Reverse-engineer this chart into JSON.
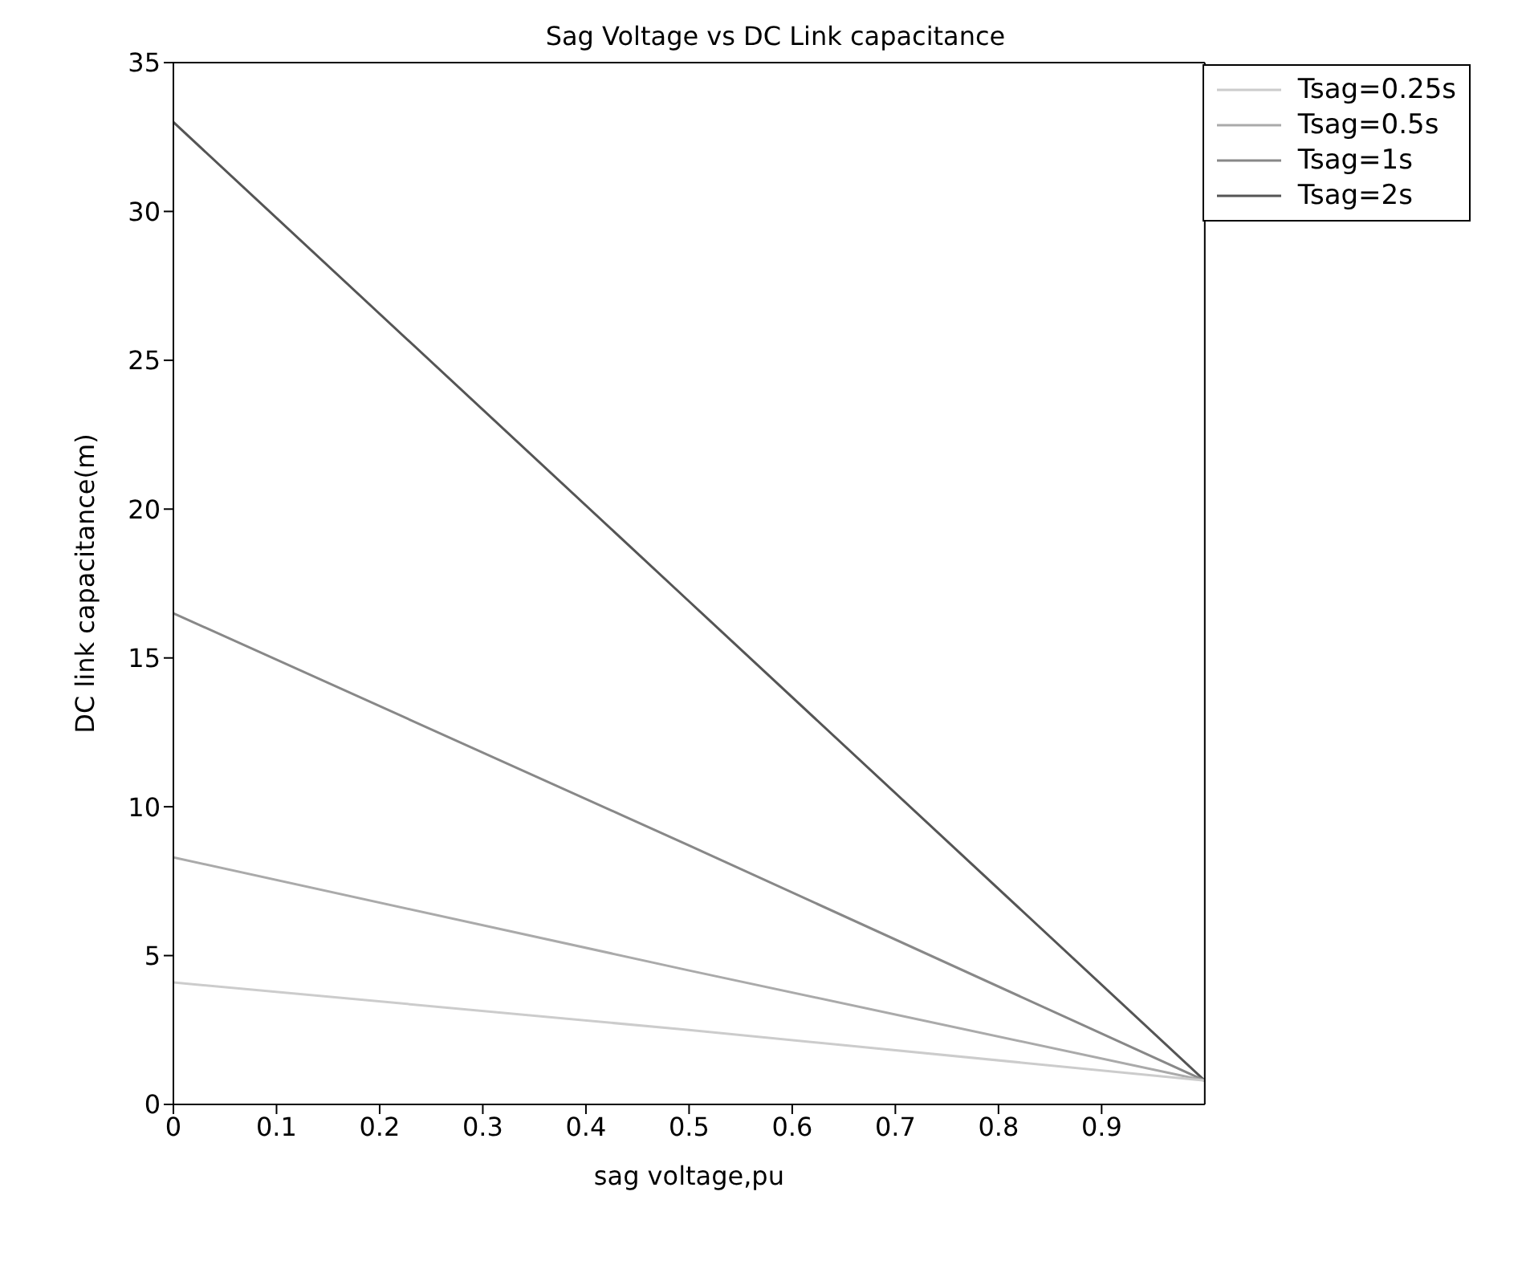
{
  "chart_data": {
    "type": "line",
    "title": "Sag Voltage vs DC Link capacitance",
    "xlabel": "sag voltage,pu",
    "ylabel": "DC link capacitance(m)",
    "x": [
      0,
      0.5,
      1
    ],
    "series": [
      {
        "name": "Tsag=2s",
        "color": "#555555",
        "values": [
          33,
          16.9,
          0.8
        ]
      },
      {
        "name": "Tsag=1s",
        "color": "#888888",
        "values": [
          16.5,
          8.7,
          0.8
        ]
      },
      {
        "name": "Tsag=0.5s",
        "color": "#aaaaaa",
        "values": [
          8.3,
          4.5,
          0.8
        ]
      },
      {
        "name": "Tsag=0.25s",
        "color": "#cccccc",
        "values": [
          4.1,
          2.5,
          0.8
        ]
      }
    ],
    "xlim": [
      0,
      1
    ],
    "xticks": [
      0,
      0.1,
      0.2,
      0.3,
      0.4,
      0.5,
      0.6,
      0.7,
      0.8,
      0.9
    ],
    "ylim": [
      0,
      35
    ],
    "yticks": [
      0,
      5,
      10,
      15,
      20,
      25,
      30,
      35
    ],
    "grid": false,
    "legend": "top right",
    "marker": "none",
    "line_style": "solid"
  }
}
